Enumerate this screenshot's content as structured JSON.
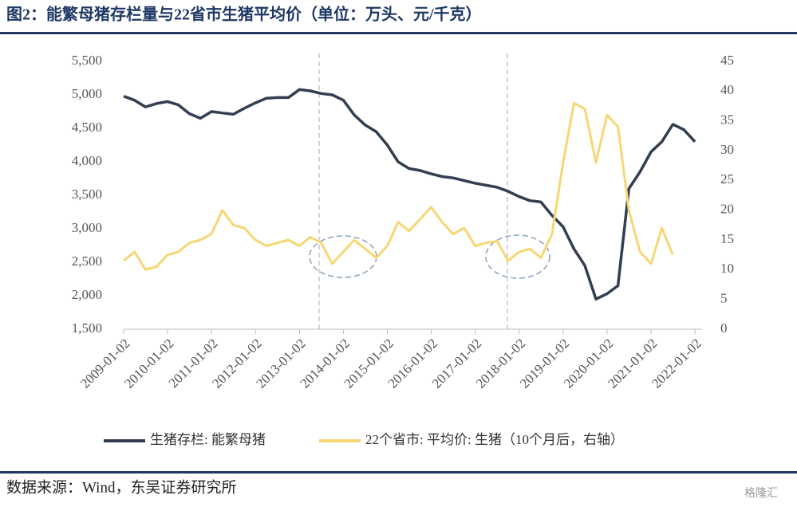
{
  "chart_data": {
    "type": "line",
    "title": "图2：能繁母猪存栏量与22省市生猪平均价（单位：万头、元/千克）",
    "source": "数据来源：Wind，东吴证券研究所",
    "watermark": "格隆汇",
    "x": [
      "2009-01-02",
      "2009-04-02",
      "2009-07-02",
      "2009-10-02",
      "2010-01-02",
      "2010-04-02",
      "2010-07-02",
      "2010-10-02",
      "2011-01-02",
      "2011-04-02",
      "2011-07-02",
      "2011-10-02",
      "2012-01-02",
      "2012-04-02",
      "2012-07-02",
      "2012-10-02",
      "2013-01-02",
      "2013-04-02",
      "2013-07-02",
      "2013-10-02",
      "2014-01-02",
      "2014-04-02",
      "2014-07-02",
      "2014-10-02",
      "2015-01-02",
      "2015-04-02",
      "2015-07-02",
      "2015-10-02",
      "2016-01-02",
      "2016-04-02",
      "2016-07-02",
      "2016-10-02",
      "2017-01-02",
      "2017-04-02",
      "2017-07-02",
      "2017-10-02",
      "2018-01-02",
      "2018-04-02",
      "2018-07-02",
      "2018-10-02",
      "2019-01-02",
      "2019-04-02",
      "2019-07-02",
      "2019-10-02",
      "2020-01-02",
      "2020-04-02",
      "2020-07-02",
      "2020-10-02",
      "2021-01-02",
      "2021-04-02",
      "2021-07-02",
      "2021-10-02",
      "2022-01-02"
    ],
    "series": [
      {
        "name": "生猪存栏: 能繁母猪",
        "color": "#333f50",
        "values": [
          4980,
          4920,
          4820,
          4870,
          4900,
          4850,
          4720,
          4650,
          4750,
          4730,
          4710,
          4800,
          4880,
          4950,
          4960,
          4960,
          5080,
          5060,
          5020,
          5000,
          4920,
          4700,
          4550,
          4450,
          4250,
          4000,
          3900,
          3870,
          3820,
          3780,
          3760,
          3720,
          3680,
          3650,
          3620,
          3560,
          3480,
          3420,
          3400,
          3200,
          3030,
          2700,
          2450,
          1950,
          2030,
          2150,
          3600,
          3850,
          4150,
          4300,
          4560,
          4480,
          4300
        ]
      },
      {
        "name": "22个省市: 平均价: 生猪（10个月后，右轴）",
        "color": "#f7d774",
        "axis": "y2",
        "values": [
          11.5,
          13,
          10,
          10.5,
          12.5,
          13,
          14.5,
          15,
          16,
          20,
          17.5,
          17,
          15,
          14,
          14.5,
          15,
          14,
          15.5,
          14.5,
          11,
          13,
          15,
          13.5,
          12,
          14,
          18,
          16.5,
          18.5,
          20.5,
          18,
          16,
          17,
          14,
          14.5,
          14.8,
          11.5,
          13,
          13.5,
          12,
          16,
          28,
          38,
          37,
          28,
          36,
          34,
          20,
          13,
          11,
          17,
          12.5,
          null,
          null
        ]
      }
    ],
    "xlim": [
      "2009-01-02",
      "2022-03-02"
    ],
    "xticks": [
      "2009-01-02",
      "2010-01-02",
      "2011-01-02",
      "2012-01-02",
      "2013-01-02",
      "2014-01-02",
      "2015-01-02",
      "2016-01-02",
      "2017-01-02",
      "2018-01-02",
      "2019-01-02",
      "2020-01-02",
      "2021-01-02",
      "2022-01-02"
    ],
    "ylim": [
      1500,
      5500
    ],
    "yticks": [
      {
        "value": 1500,
        "label": "1,500"
      },
      {
        "value": 2000,
        "label": "2,000"
      },
      {
        "value": 2500,
        "label": "2,500"
      },
      {
        "value": 3000,
        "label": "3,000"
      },
      {
        "value": 3500,
        "label": "3,500"
      },
      {
        "value": 4000,
        "label": "4,000"
      },
      {
        "value": 4500,
        "label": "4,500"
      },
      {
        "value": 5000,
        "label": "5,000"
      },
      {
        "value": 5500,
        "label": "5,500"
      }
    ],
    "y2lim": [
      0,
      45
    ],
    "y2ticks": [
      0,
      5,
      10,
      15,
      20,
      25,
      30,
      35,
      40,
      45
    ],
    "legend": "bottom"
  }
}
